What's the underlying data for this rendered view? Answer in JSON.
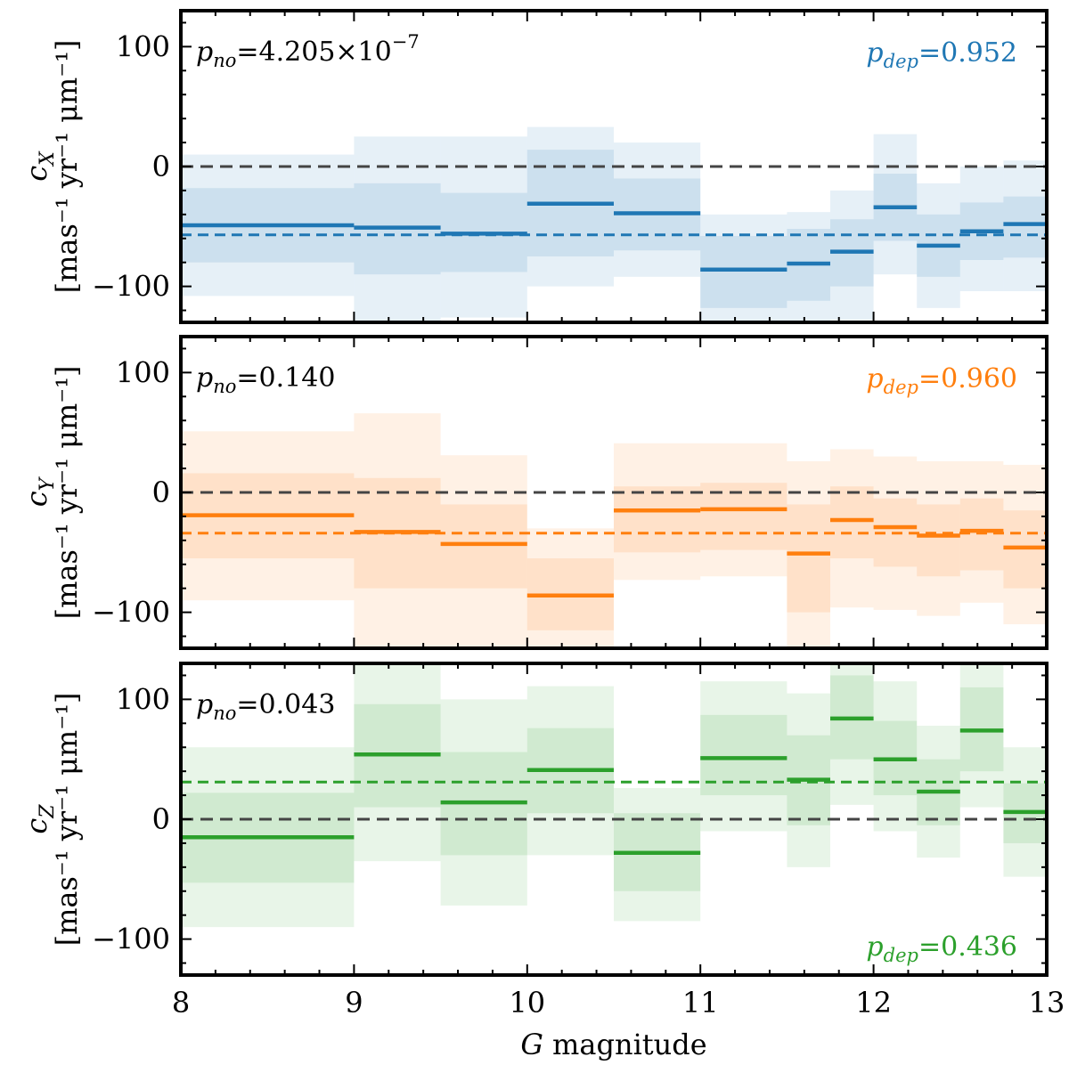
{
  "chart_data": {
    "type": "step",
    "xlabel_italic": "G",
    "xlabel_rest": " magnitude",
    "xlim": [
      8,
      13
    ],
    "xticks": [
      8,
      9,
      10,
      11,
      12,
      13
    ],
    "bin_edges": [
      8,
      9,
      9.5,
      10,
      10.5,
      11,
      11.5,
      11.75,
      12,
      12.25,
      12.5,
      12.75,
      13
    ],
    "colors": {
      "zero_line": "#444444",
      "frame": "#000000"
    },
    "panels": [
      {
        "name": "cX",
        "ylabel_symbol": "c",
        "ylabel_sub": "X",
        "ylabel_units": "[mas⁻¹ yr⁻¹ μm⁻¹]",
        "ylim": [
          -130,
          130
        ],
        "yticks": [
          -100,
          0,
          100
        ],
        "color": "#1f77b4",
        "p_no_prefix": "p",
        "p_no_sub": "no",
        "p_no_value": "=4.205×10",
        "p_no_exp": "−7",
        "p_dep_prefix": "p",
        "p_dep_sub": "dep",
        "p_dep_value": "=0.952",
        "p_dep_position": "top-right",
        "mean": -57,
        "values": [
          -49,
          -51,
          -56,
          -31,
          -39,
          -86,
          -81,
          -71,
          -34,
          -66,
          -54,
          -48
        ],
        "inner_band": [
          [
            -80,
            -18
          ],
          [
            -90,
            -14
          ],
          [
            -88,
            -22
          ],
          [
            -75,
            14
          ],
          [
            -70,
            -10
          ],
          [
            -118,
            -58
          ],
          [
            -112,
            -52
          ],
          [
            -100,
            -44
          ],
          [
            -62,
            -6
          ],
          [
            -92,
            -40
          ],
          [
            -78,
            -30
          ],
          [
            -76,
            -25
          ]
        ],
        "outer_band": [
          [
            -108,
            10
          ],
          [
            -130,
            25
          ],
          [
            -126,
            25
          ],
          [
            -100,
            33
          ],
          [
            -92,
            20
          ],
          [
            -130,
            -40
          ],
          [
            -130,
            -38
          ],
          [
            -128,
            -20
          ],
          [
            -90,
            27
          ],
          [
            -118,
            -14
          ],
          [
            -104,
            0
          ],
          [
            -104,
            5
          ]
        ]
      },
      {
        "name": "cY",
        "ylabel_symbol": "c",
        "ylabel_sub": "Y",
        "ylabel_units": "[mas⁻¹ yr⁻¹ μm⁻¹]",
        "ylim": [
          -130,
          130
        ],
        "yticks": [
          -100,
          0,
          100
        ],
        "color": "#ff7f0e",
        "p_no_prefix": "p",
        "p_no_sub": "no",
        "p_no_value": "=0.140",
        "p_no_exp": "",
        "p_dep_prefix": "p",
        "p_dep_sub": "dep",
        "p_dep_value": "=0.960",
        "p_dep_position": "top-right",
        "mean": -34,
        "values": [
          -19,
          -33,
          -43,
          -86,
          -15,
          -14,
          -51,
          -23,
          -29,
          -36,
          -32,
          -46
        ],
        "inner_band": [
          [
            -55,
            16
          ],
          [
            -80,
            12
          ],
          [
            -80,
            -10
          ],
          [
            -115,
            -55
          ],
          [
            -50,
            5
          ],
          [
            -48,
            8
          ],
          [
            -100,
            -10
          ],
          [
            -55,
            5
          ],
          [
            -62,
            -5
          ],
          [
            -70,
            -10
          ],
          [
            -65,
            -5
          ],
          [
            -80,
            -15
          ]
        ],
        "outer_band": [
          [
            -90,
            51
          ],
          [
            -130,
            66
          ],
          [
            -130,
            31
          ],
          [
            -130,
            -30
          ],
          [
            -73,
            41
          ],
          [
            -70,
            41
          ],
          [
            -130,
            26
          ],
          [
            -96,
            36
          ],
          [
            -98,
            30
          ],
          [
            -103,
            26
          ],
          [
            -92,
            26
          ],
          [
            -110,
            23
          ]
        ]
      },
      {
        "name": "cZ",
        "ylabel_symbol": "c",
        "ylabel_sub": "Z",
        "ylabel_units": "[mas⁻¹ yr⁻¹ μm⁻¹]",
        "ylim": [
          -130,
          130
        ],
        "yticks": [
          -100,
          0,
          100
        ],
        "color": "#2ca02c",
        "p_no_prefix": "p",
        "p_no_sub": "no",
        "p_no_value": "=0.043",
        "p_no_exp": "",
        "p_dep_prefix": "p",
        "p_dep_sub": "dep",
        "p_dep_value": "=0.436",
        "p_dep_position": "bottom-right",
        "mean": 31,
        "values": [
          -15,
          54,
          14,
          41,
          -28,
          51,
          33,
          84,
          50,
          23,
          74,
          6
        ],
        "inner_band": [
          [
            -53,
            22
          ],
          [
            10,
            96
          ],
          [
            -30,
            56
          ],
          [
            5,
            76
          ],
          [
            -60,
            5
          ],
          [
            20,
            87
          ],
          [
            -5,
            70
          ],
          [
            50,
            120
          ],
          [
            20,
            82
          ],
          [
            -5,
            50
          ],
          [
            40,
            110
          ],
          [
            -20,
            30
          ]
        ],
        "outer_band": [
          [
            -90,
            60
          ],
          [
            -35,
            130
          ],
          [
            -72,
            100
          ],
          [
            -30,
            111
          ],
          [
            -85,
            26
          ],
          [
            -10,
            115
          ],
          [
            -40,
            105
          ],
          [
            12,
            130
          ],
          [
            -10,
            115
          ],
          [
            -32,
            78
          ],
          [
            10,
            130
          ],
          [
            -48,
            60
          ]
        ]
      }
    ]
  }
}
